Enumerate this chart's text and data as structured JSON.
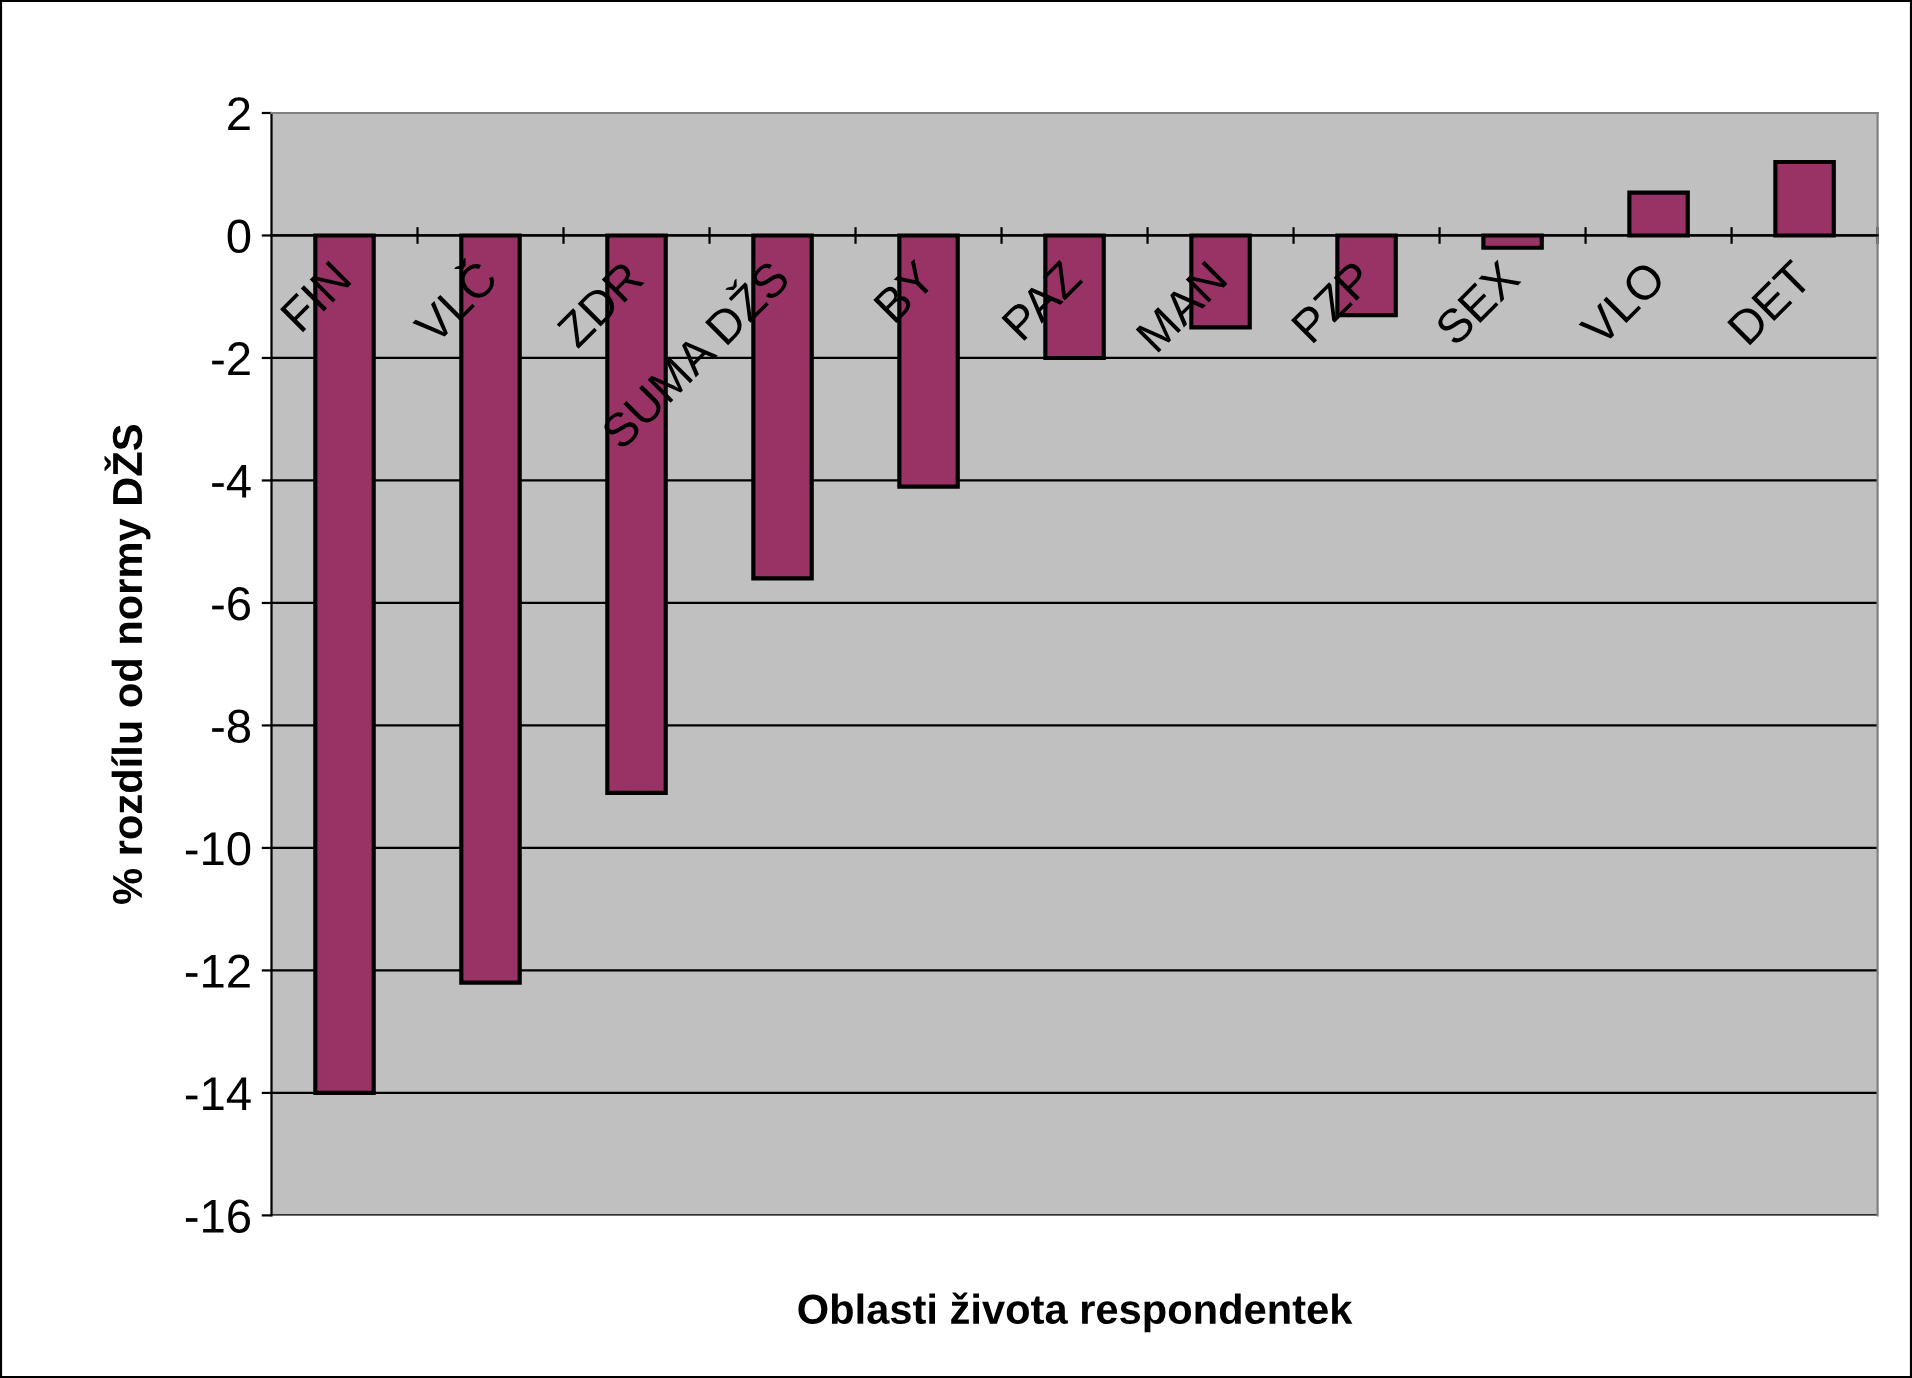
{
  "chart_data": {
    "type": "bar",
    "xlabel": "Oblasti života respondentek",
    "ylabel": "% rozdílu od normy DŽS",
    "categories": [
      "FIN",
      "VLČ",
      "ZDR",
      "SUMA DŽS",
      "BY",
      "PAZ",
      "MAN",
      "PZP",
      "SEX",
      "VLO",
      "DET"
    ],
    "values": [
      -14.0,
      -12.2,
      -9.1,
      -5.6,
      -4.1,
      -2.0,
      -1.5,
      -1.3,
      -0.2,
      0.7,
      1.2
    ],
    "color": "#993366",
    "ylim": [
      -16,
      2
    ],
    "yticks": [
      -16,
      -14,
      -12,
      -10,
      -8,
      -6,
      -4,
      -2,
      0,
      2
    ],
    "grid": "y",
    "legend": false
  }
}
